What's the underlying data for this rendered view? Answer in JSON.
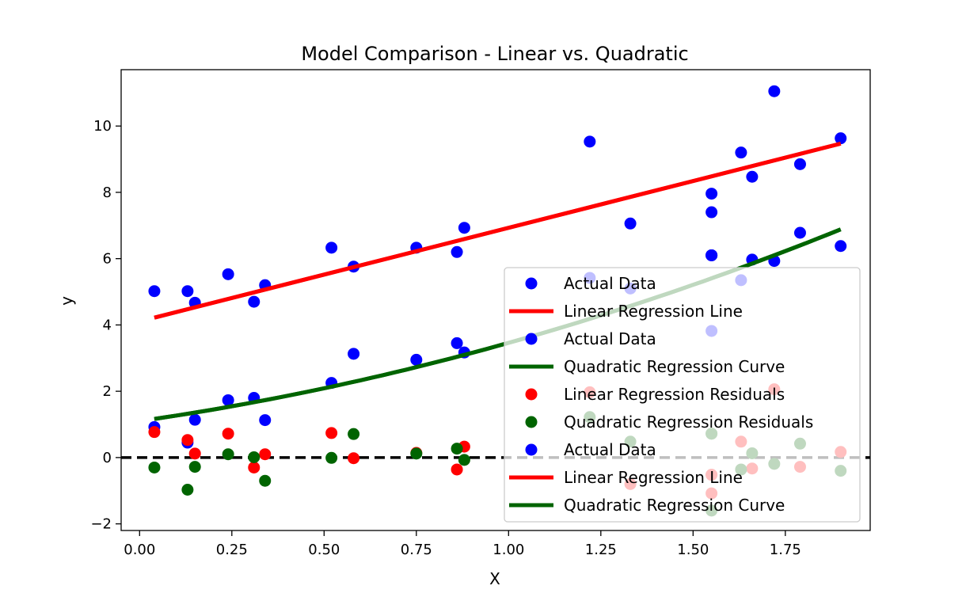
{
  "chart_data": {
    "type": "scatter",
    "title": "Model Comparison - Linear vs. Quadratic",
    "xlabel": "X",
    "ylabel": "y",
    "xlim": [
      -0.05,
      1.98
    ],
    "ylim": [
      -2.2,
      11.7
    ],
    "xticks": [
      0.0,
      0.25,
      0.5,
      0.75,
      1.0,
      1.25,
      1.5,
      1.75
    ],
    "xtick_labels": [
      "0.00",
      "0.25",
      "0.50",
      "0.75",
      "1.00",
      "1.25",
      "1.50",
      "1.75"
    ],
    "yticks": [
      -2,
      0,
      2,
      4,
      6,
      8,
      10
    ],
    "ytick_labels": [
      "−2",
      "0",
      "2",
      "4",
      "6",
      "8",
      "10"
    ],
    "grid": false,
    "legend_position": "lower-right",
    "colors": {
      "actual": "#0000ff",
      "linear": "#ff0000",
      "quadratic": "#006400",
      "reference": "#000000"
    },
    "x": [
      0.04,
      0.13,
      0.15,
      0.24,
      0.31,
      0.34,
      0.52,
      0.58,
      0.75,
      0.86,
      0.88,
      1.22,
      1.33,
      1.55,
      1.55,
      1.55,
      1.63,
      1.66,
      1.72,
      1.79,
      1.9
    ],
    "series": [
      {
        "name": "Actual Data",
        "kind": "scatter",
        "color": "#0000ff",
        "y": [
          5.02,
          5.02,
          4.67,
          5.53,
          4.7,
          5.2,
          6.33,
          5.76,
          6.33,
          6.2,
          6.93,
          9.53,
          7.06,
          7.96,
          7.4,
          6.1,
          9.2,
          8.47,
          11.05,
          8.85,
          9.63
        ]
      },
      {
        "name": "Linear Regression Line",
        "kind": "line",
        "color": "#ff0000",
        "x": [
          0.04,
          1.9
        ],
        "y": [
          4.22,
          9.47
        ]
      },
      {
        "name": "Actual Data",
        "kind": "scatter",
        "color": "#0000ff",
        "y": [
          0.92,
          0.45,
          1.14,
          1.73,
          1.8,
          1.13,
          2.25,
          3.13,
          2.95,
          3.45,
          3.17,
          5.42,
          5.1,
          6.1,
          3.82,
          6.1,
          5.35,
          5.97,
          5.93,
          6.78,
          6.38
        ]
      },
      {
        "name": "Quadratic Regression Curve",
        "kind": "curve",
        "color": "#006400",
        "coefficients": [
          1.1,
          1.6,
          0.76
        ]
      },
      {
        "name": "Linear Regression Residuals",
        "kind": "scatter",
        "color": "#ff0000",
        "y": [
          0.77,
          0.53,
          0.12,
          0.72,
          -0.3,
          0.1,
          0.74,
          -0.02,
          0.14,
          -0.36,
          0.33,
          1.97,
          -0.8,
          -0.52,
          -1.08,
          -0.52,
          0.48,
          -0.33,
          2.06,
          -0.28,
          0.17
        ]
      },
      {
        "name": "Quadratic Regression Residuals",
        "kind": "scatter",
        "color": "#006400",
        "y": [
          -0.3,
          -0.97,
          -0.28,
          0.1,
          0.01,
          -0.7,
          -0.01,
          0.71,
          0.12,
          0.27,
          -0.07,
          1.22,
          0.48,
          0.72,
          -1.6,
          0.72,
          -0.36,
          0.13,
          -0.19,
          0.42,
          -0.4
        ]
      },
      {
        "name": "Actual Data",
        "kind": "scatter",
        "color": "#0000ff",
        "y": []
      },
      {
        "name": "Linear Regression Line",
        "kind": "line",
        "color": "#ff0000",
        "x": [
          0.04,
          1.9
        ],
        "y": [
          4.22,
          9.47
        ]
      },
      {
        "name": "Quadratic Regression Curve",
        "kind": "curve",
        "color": "#006400",
        "coefficients": [
          1.1,
          1.6,
          0.76
        ]
      }
    ],
    "reference_line": {
      "y": 0,
      "style": "dashed",
      "color": "#000000"
    },
    "legend": [
      {
        "label": "Actual Data",
        "marker": "dot",
        "color": "#0000ff"
      },
      {
        "label": "Linear Regression Line",
        "marker": "line",
        "color": "#ff0000"
      },
      {
        "label": "Actual Data",
        "marker": "dot",
        "color": "#0000ff"
      },
      {
        "label": "Quadratic Regression Curve",
        "marker": "line",
        "color": "#006400"
      },
      {
        "label": "Linear Regression Residuals",
        "marker": "dot",
        "color": "#ff0000"
      },
      {
        "label": "Quadratic Regression Residuals",
        "marker": "dot",
        "color": "#006400"
      },
      {
        "label": "Actual Data",
        "marker": "dot",
        "color": "#0000ff"
      },
      {
        "label": "Linear Regression Line",
        "marker": "line",
        "color": "#ff0000"
      },
      {
        "label": "Quadratic Regression Curve",
        "marker": "line",
        "color": "#006400"
      }
    ]
  }
}
